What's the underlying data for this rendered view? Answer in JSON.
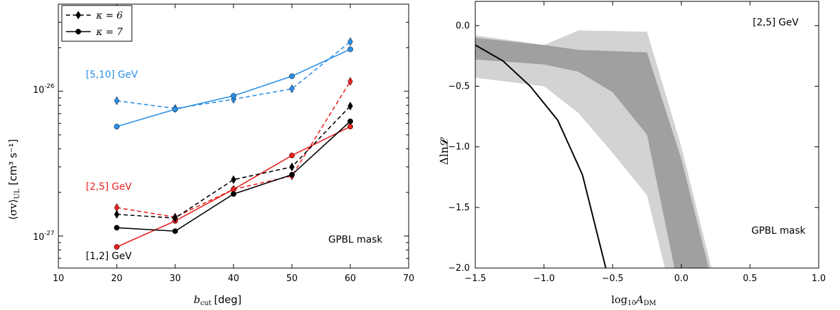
{
  "chart_data": [
    {
      "type": "line",
      "xlabel_sym": "b",
      "xlabel_sub": "cut",
      "xlabel_unit": "[deg]",
      "ylabel_sym": "⟨σv⟩",
      "ylabel_sub": "UL",
      "ylabel_unit": "[cm³ s⁻¹]",
      "xlim": [
        10,
        70
      ],
      "ylim": [
        6e-28,
        4e-26
      ],
      "yscale": "log",
      "xticks": [
        "10",
        "20",
        "30",
        "40",
        "50",
        "60",
        "70"
      ],
      "ytick_labels": [
        "10",
        "10"
      ],
      "ytick_exps": [
        "-26",
        "-27"
      ],
      "legend": {
        "placement": "upper-left",
        "entries": [
          {
            "label": "κ = 6",
            "linestyle": "dashed",
            "marker": "diamond"
          },
          {
            "label": "κ = 7",
            "linestyle": "solid",
            "marker": "circle"
          }
        ]
      },
      "annotations": {
        "band_5_10": "[5,10] GeV",
        "band_2_5": "[2,5] GeV",
        "band_1_2": "[1,2] GeV",
        "mask": "GPBL mask"
      },
      "x": [
        20,
        30,
        40,
        50,
        60
      ],
      "series": [
        {
          "energy": "[5,10] GeV",
          "kappa": 6,
          "color": "#2b8fe6",
          "dashed": true,
          "marker": "diamond",
          "values": [
            8.6e-27,
            7.6e-27,
            8.8e-27,
            1.04e-26,
            2.2e-26
          ]
        },
        {
          "energy": "[5,10] GeV",
          "kappa": 7,
          "color": "#2b8fe6",
          "dashed": false,
          "marker": "circle",
          "values": [
            5.7e-27,
            7.5e-27,
            9.3e-27,
            1.27e-26,
            1.95e-26
          ]
        },
        {
          "energy": "[2,5] GeV",
          "kappa": 6,
          "color": "#e8211e",
          "dashed": true,
          "marker": "diamond",
          "values": [
            1.57e-27,
            1.35e-27,
            2.1e-27,
            2.6e-27,
            1.17e-26
          ]
        },
        {
          "energy": "[2,5] GeV",
          "kappa": 7,
          "color": "#e8211e",
          "dashed": false,
          "marker": "circle",
          "values": [
            8.4e-28,
            1.27e-27,
            2.1e-27,
            3.6e-27,
            5.7e-27
          ]
        },
        {
          "energy": "[1,2] GeV",
          "kappa": 6,
          "color": "#000000",
          "dashed": true,
          "marker": "diamond",
          "values": [
            1.41e-27,
            1.33e-27,
            2.45e-27,
            3e-27,
            7.9e-27
          ]
        },
        {
          "energy": "[1,2] GeV",
          "kappa": 7,
          "color": "#000000",
          "dashed": false,
          "marker": "circle",
          "values": [
            1.14e-27,
            1.08e-27,
            1.95e-27,
            2.65e-27,
            6.2e-27
          ]
        }
      ]
    },
    {
      "type": "area",
      "xlabel_sym": "log",
      "xlabel_base": "10",
      "xlabel_var": "A",
      "xlabel_sub": "DM",
      "ylabel": "Δln𝓛",
      "xlim": [
        -1.5,
        1.0
      ],
      "ylim": [
        -2.0,
        0.2
      ],
      "xticks": [
        "−1.5",
        "−1.0",
        "−0.5",
        "0.0",
        "0.5",
        "1.0"
      ],
      "yticks": [
        "0.0",
        "−0.5",
        "−1.0",
        "−1.5",
        "−2.0"
      ],
      "annotations": {
        "energy": "[2,5] GeV",
        "mask": "GPBL mask"
      },
      "outer_band": {
        "color": "#d3d3d3",
        "upper": [
          [
            -1.5,
            -0.08
          ],
          [
            -1.0,
            -0.16
          ],
          [
            -0.75,
            -0.04
          ],
          [
            -0.25,
            -0.05
          ],
          [
            0.0,
            -1.0
          ],
          [
            0.22,
            -2.0
          ]
        ],
        "lower": [
          [
            -1.5,
            -0.43
          ],
          [
            -1.0,
            -0.5
          ],
          [
            -0.75,
            -0.72
          ],
          [
            -0.5,
            -1.05
          ],
          [
            -0.25,
            -1.4
          ],
          [
            -0.12,
            -2.0
          ]
        ]
      },
      "inner_band": {
        "color": "#a0a0a0",
        "upper": [
          [
            -1.5,
            -0.1
          ],
          [
            -1.0,
            -0.16
          ],
          [
            -0.75,
            -0.2
          ],
          [
            -0.25,
            -0.22
          ],
          [
            0.0,
            -1.1
          ],
          [
            0.2,
            -2.0
          ]
        ],
        "lower": [
          [
            -1.5,
            -0.28
          ],
          [
            -1.0,
            -0.32
          ],
          [
            -0.75,
            -0.38
          ],
          [
            -0.5,
            -0.55
          ],
          [
            -0.25,
            -0.9
          ],
          [
            -0.05,
            -2.0
          ]
        ]
      },
      "line": {
        "color": "#000000",
        "x": [
          -1.5,
          -1.3,
          -1.1,
          -0.9,
          -0.72,
          -0.55
        ],
        "y": [
          -0.16,
          -0.29,
          -0.5,
          -0.78,
          -1.23,
          -2.0
        ]
      }
    }
  ]
}
